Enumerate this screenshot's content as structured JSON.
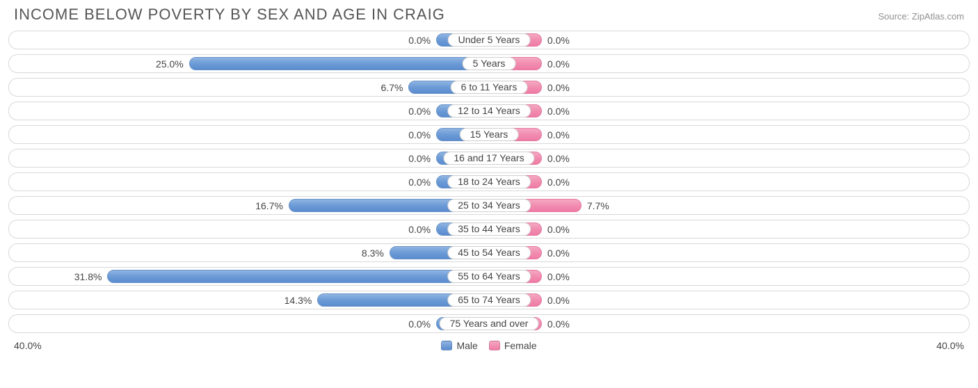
{
  "header": {
    "title": "INCOME BELOW POVERTY BY SEX AND AGE IN CRAIG",
    "source": "Source: ZipAtlas.com"
  },
  "chart": {
    "type": "diverging-bar",
    "axis_max": 40.0,
    "axis_max_label_left": "40.0%",
    "axis_max_label_right": "40.0%",
    "min_bar_pct": 11.0,
    "colors": {
      "male_top": "#8fb4e3",
      "male_bottom": "#5a8bcf",
      "male_border": "#6a93c6",
      "female_top": "#f5a8c2",
      "female_bottom": "#ef7aa4",
      "female_border": "#e27ba2",
      "track_border": "#d8d8d8",
      "text": "#444444",
      "title_text": "#555555",
      "source_text": "#909090",
      "background": "#ffffff"
    },
    "fontsize": {
      "title": 22,
      "labels": 14,
      "source": 13
    },
    "legend": {
      "male": "Male",
      "female": "Female"
    },
    "rows": [
      {
        "category": "Under 5 Years",
        "male": 0.0,
        "female": 0.0,
        "male_label": "0.0%",
        "female_label": "0.0%"
      },
      {
        "category": "5 Years",
        "male": 25.0,
        "female": 0.0,
        "male_label": "25.0%",
        "female_label": "0.0%"
      },
      {
        "category": "6 to 11 Years",
        "male": 6.7,
        "female": 0.0,
        "male_label": "6.7%",
        "female_label": "0.0%"
      },
      {
        "category": "12 to 14 Years",
        "male": 0.0,
        "female": 0.0,
        "male_label": "0.0%",
        "female_label": "0.0%"
      },
      {
        "category": "15 Years",
        "male": 0.0,
        "female": 0.0,
        "male_label": "0.0%",
        "female_label": "0.0%"
      },
      {
        "category": "16 and 17 Years",
        "male": 0.0,
        "female": 0.0,
        "male_label": "0.0%",
        "female_label": "0.0%"
      },
      {
        "category": "18 to 24 Years",
        "male": 0.0,
        "female": 0.0,
        "male_label": "0.0%",
        "female_label": "0.0%"
      },
      {
        "category": "25 to 34 Years",
        "male": 16.7,
        "female": 7.7,
        "male_label": "16.7%",
        "female_label": "7.7%"
      },
      {
        "category": "35 to 44 Years",
        "male": 0.0,
        "female": 0.0,
        "male_label": "0.0%",
        "female_label": "0.0%"
      },
      {
        "category": "45 to 54 Years",
        "male": 8.3,
        "female": 0.0,
        "male_label": "8.3%",
        "female_label": "0.0%"
      },
      {
        "category": "55 to 64 Years",
        "male": 31.8,
        "female": 0.0,
        "male_label": "31.8%",
        "female_label": "0.0%"
      },
      {
        "category": "65 to 74 Years",
        "male": 14.3,
        "female": 0.0,
        "male_label": "14.3%",
        "female_label": "0.0%"
      },
      {
        "category": "75 Years and over",
        "male": 0.0,
        "female": 0.0,
        "male_label": "0.0%",
        "female_label": "0.0%"
      }
    ]
  }
}
